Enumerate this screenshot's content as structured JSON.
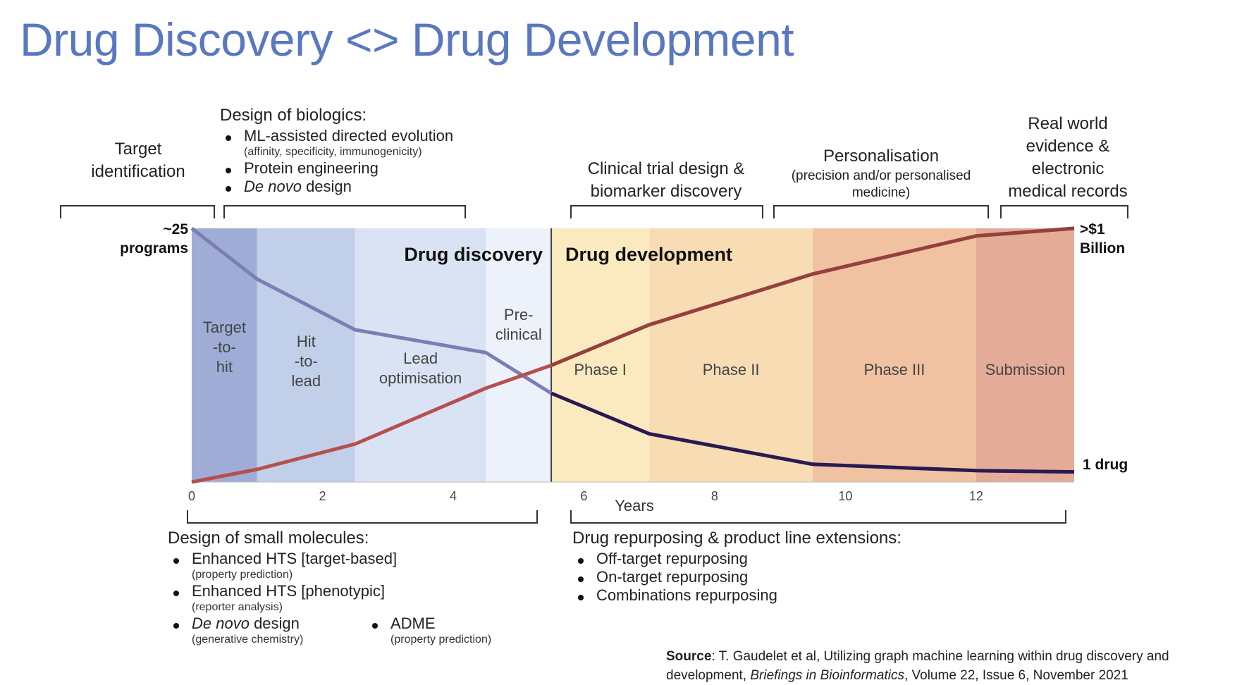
{
  "title": "Drug Discovery <> Drug Development",
  "top": {
    "target_identification": [
      "Target",
      "identification"
    ],
    "biologics": {
      "heading": "Design of biologics:",
      "items": [
        {
          "main": "ML-assisted directed evolution",
          "sub": "(affinity, specificity, immunogenicity)",
          "italic": false
        },
        {
          "main": "Protein engineering",
          "sub": "",
          "italic": false
        },
        {
          "main": "De novo",
          "rest": " design",
          "sub": "",
          "italic": true
        }
      ]
    },
    "clinical": [
      "Clinical trial design &",
      "biomarker discovery"
    ],
    "personalisation": {
      "heading": "Personalisation",
      "sub": [
        "(precision and/or personalised",
        "medicine)"
      ]
    },
    "real_world": [
      "Real world",
      "evidence &",
      "electronic",
      "medical records"
    ]
  },
  "chart": {
    "left_top_label": [
      "~25",
      "programs"
    ],
    "right_top_label": [
      ">$1",
      "Billion"
    ],
    "right_bottom_label": "1 drug",
    "discovery_label": "Drug discovery",
    "development_label": "Drug development",
    "stages": [
      {
        "lines": [
          "Target",
          "-to-",
          "hit"
        ]
      },
      {
        "lines": [
          "Hit",
          "-to-",
          "lead"
        ]
      },
      {
        "lines": [
          "Lead",
          "optimisation"
        ]
      },
      {
        "lines": [
          "Pre-",
          "clinical"
        ]
      },
      {
        "lines": [
          "Phase I"
        ]
      },
      {
        "lines": [
          "Phase II"
        ]
      },
      {
        "lines": [
          "Phase III"
        ]
      },
      {
        "lines": [
          "Submission"
        ]
      }
    ],
    "x_ticks": [
      "0",
      "2",
      "4",
      "6",
      "8",
      "10",
      "12"
    ],
    "xlabel": "Years"
  },
  "chart_data": {
    "type": "line",
    "xlabel": "Years",
    "xlim": [
      0,
      13.5
    ],
    "x_ticks": [
      0,
      2,
      4,
      6,
      8,
      10,
      12
    ],
    "ylim": [
      0,
      1
    ],
    "series": [
      {
        "x": [
          0,
          1,
          2.5,
          4.5,
          5.5,
          7,
          9.5,
          12,
          13.5
        ],
        "values": [
          1.0,
          0.8,
          0.6,
          0.51,
          0.35,
          0.19,
          0.07,
          0.045,
          0.04
        ],
        "color": "#7b7eb5"
      },
      {
        "x": [
          0,
          1,
          2.5,
          4.5,
          5.5,
          7,
          9.5,
          12,
          13.5
        ],
        "values": [
          0.0,
          0.05,
          0.15,
          0.37,
          0.46,
          0.62,
          0.82,
          0.97,
          1.0
        ],
        "color": "#b6504d"
      }
    ],
    "bands": [
      {
        "from": 0,
        "to": 1,
        "color": "#9fadd6"
      },
      {
        "from": 1,
        "to": 2.5,
        "color": "#c2cfe9"
      },
      {
        "from": 2.5,
        "to": 4.5,
        "color": "#d9e3f3"
      },
      {
        "from": 4.5,
        "to": 5.5,
        "color": "#ecf1fa"
      },
      {
        "from": 5.5,
        "to": 7,
        "color": "#fbe9c0"
      },
      {
        "from": 7,
        "to": 9.5,
        "color": "#f7dcb4"
      },
      {
        "from": 9.5,
        "to": 12,
        "color": "#f0c2a2"
      },
      {
        "from": 12,
        "to": 13.5,
        "color": "#e4ab98"
      }
    ],
    "discovery_boundary": 5.5
  },
  "bottom": {
    "small_molecules": {
      "heading": "Design of small molecules:",
      "items": [
        {
          "main": "Enhanced HTS [target-based]",
          "sub": "(property prediction)"
        },
        {
          "main": "Enhanced HTS [phenotypic]",
          "sub": "(reporter analysis)"
        },
        {
          "main": "De novo design",
          "sub": "(generative chemistry)"
        }
      ],
      "adme": {
        "main": "ADME",
        "sub": "(property prediction)"
      }
    },
    "repurposing": {
      "heading": "Drug repurposing & product line extensions:",
      "items": [
        "Off-target repurposing",
        "On-target repurposing",
        "Combinations repurposing"
      ]
    }
  },
  "source": {
    "label": "Source",
    "text1": ": T. Gaudelet et al, Utilizing graph machine learning within drug discovery and",
    "text2a": "development, ",
    "journal": "Briefings in Bioinformatics",
    "text2b": ", Volume 22, Issue 6, November 2021"
  }
}
